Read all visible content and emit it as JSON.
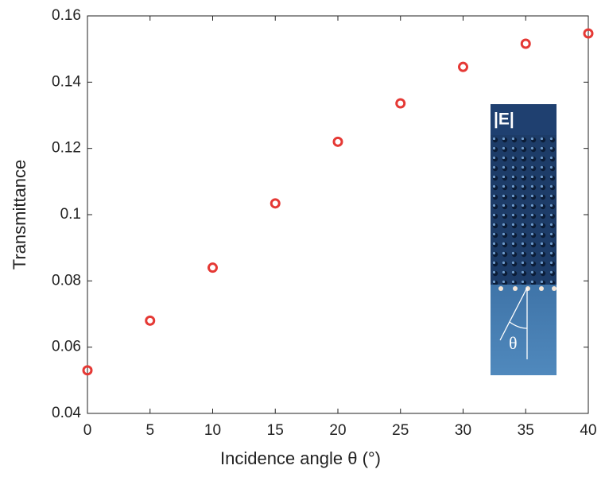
{
  "chart_data": {
    "type": "scatter",
    "xlabel": "Incidence angle θ (°)",
    "ylabel": "Transmittance",
    "series": [
      {
        "x": [
          0,
          5,
          10,
          15,
          20,
          25,
          30,
          35,
          40
        ],
        "values": [
          0.053,
          0.068,
          0.084,
          0.1034,
          0.122,
          0.1336,
          0.1446,
          0.1516,
          0.1547
        ],
        "color": "#e53935"
      }
    ],
    "xlim": [
      0,
      40
    ],
    "xticks": [
      0,
      5,
      10,
      15,
      20,
      25,
      30,
      35,
      40
    ],
    "ylim": [
      0.04,
      0.16
    ],
    "yticks": [
      0.04,
      0.06,
      0.08,
      0.1,
      0.12,
      0.14,
      0.16
    ],
    "annotations": [
      "|E|",
      "θ"
    ]
  }
}
